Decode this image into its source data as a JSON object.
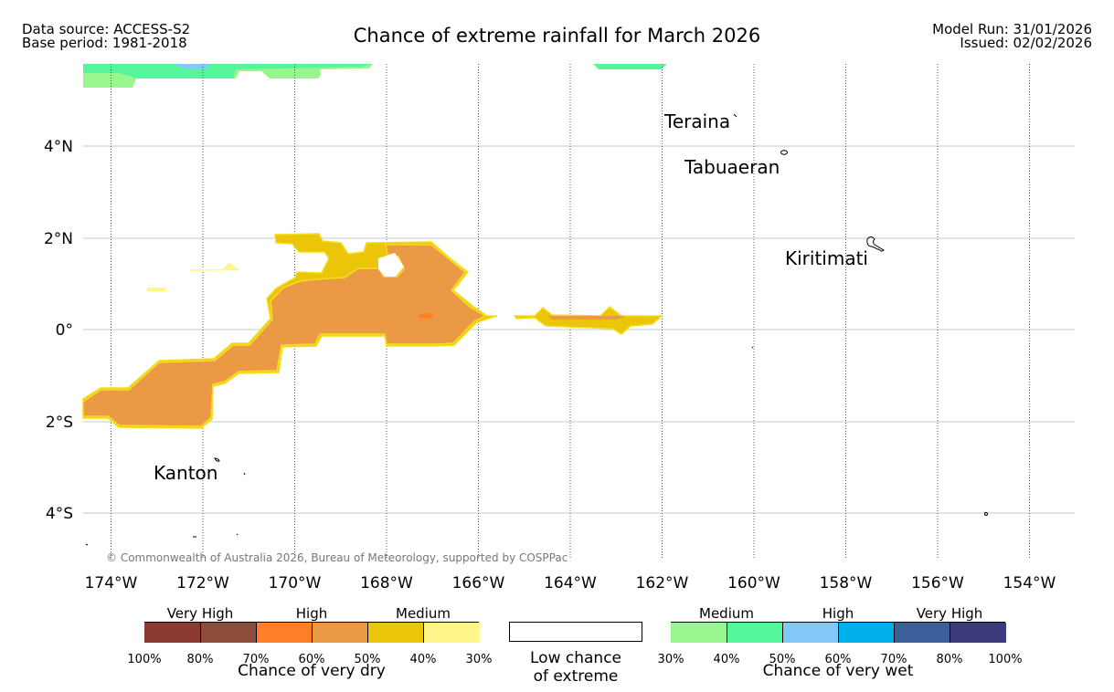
{
  "header": {
    "data_source": "Data source: ACCESS-S2",
    "base_period": "Base period: 1981-2018",
    "title": "Chance of extreme rainfall for March 2026",
    "model_run": "Model Run: 31/01/2026",
    "issued": "Issued: 02/02/2026"
  },
  "map": {
    "lat_labels": [
      "4°N",
      "2°N",
      "0°",
      "2°S",
      "4°S"
    ],
    "lon_labels": [
      "174°W",
      "172°W",
      "170°W",
      "168°W",
      "166°W",
      "164°W",
      "162°W",
      "160°W",
      "158°W",
      "156°W",
      "154°W"
    ],
    "places": [
      "Teraina",
      "Tabuaeran",
      "Kiritimati",
      "Kanton"
    ],
    "copyright": "© Commonwealth of Australia 2026, Bureau of Meteorology, supported by COSPPac"
  },
  "legend": {
    "dry": {
      "categories": [
        "Very High",
        "High",
        "Medium"
      ],
      "colors": [
        "#8b3a2f",
        "#8b4c3a",
        "#ff7f27",
        "#eb9945",
        "#eac50a",
        "#fff68a"
      ],
      "ticks": [
        "100%",
        "80%",
        "70%",
        "60%",
        "50%",
        "40%",
        "30%"
      ],
      "title": "Chance of very dry"
    },
    "low": {
      "line1": "Low chance",
      "line2": "of extreme"
    },
    "wet": {
      "categories": [
        "Medium",
        "High",
        "Very High"
      ],
      "colors": [
        "#99f590",
        "#55f59a",
        "#82c9f7",
        "#00b0e9",
        "#3a5f9a",
        "#3b3a7a"
      ],
      "ticks": [
        "30%",
        "40%",
        "50%",
        "60%",
        "70%",
        "80%",
        "100%"
      ],
      "title": "Chance of very wet"
    }
  }
}
